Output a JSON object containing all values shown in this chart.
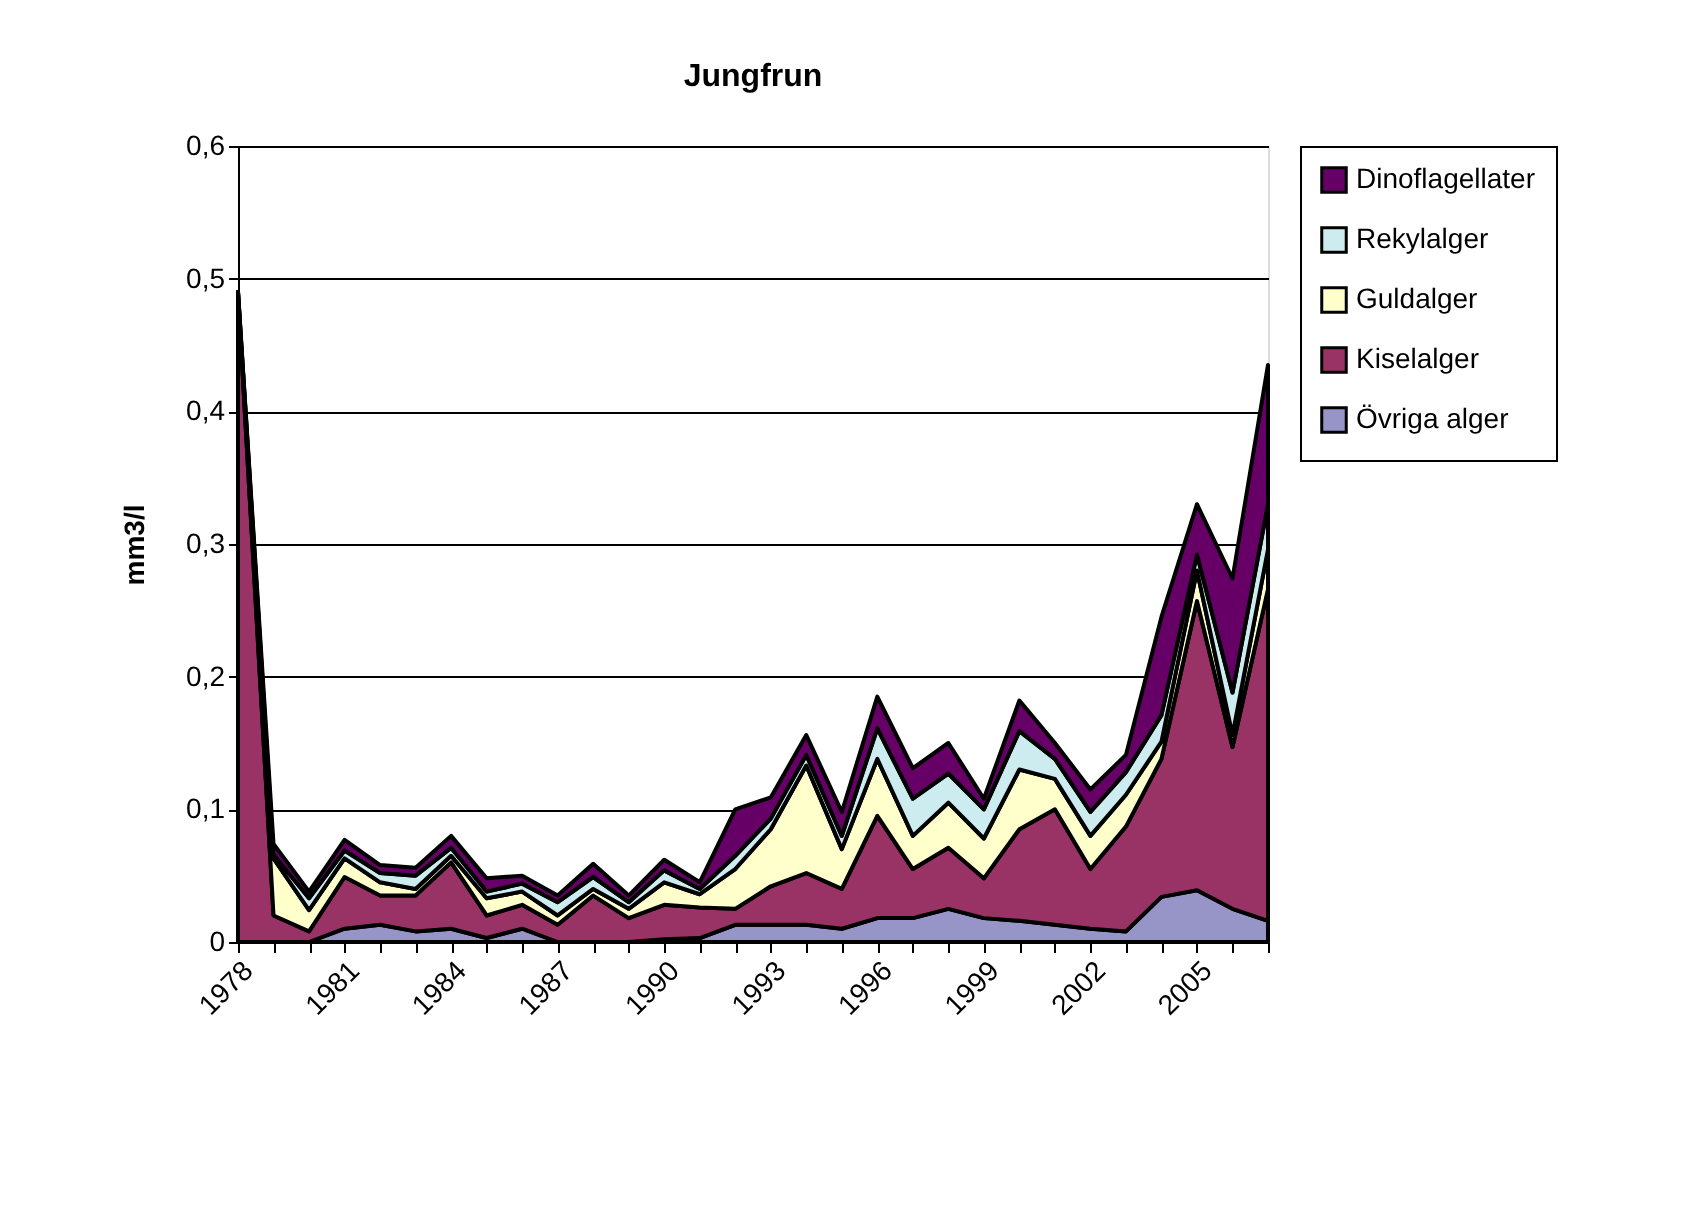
{
  "chart_data": {
    "type": "area",
    "title": "Jungfrun",
    "ylabel": "mm3/l",
    "stacked": true,
    "categories": [
      "1978",
      null,
      null,
      "1981",
      null,
      null,
      "1984",
      null,
      null,
      "1987",
      null,
      null,
      "1990",
      null,
      null,
      "1993",
      null,
      null,
      "1996",
      null,
      null,
      "1999",
      null,
      null,
      "2002",
      null,
      null,
      "2005",
      null,
      null
    ],
    "series": [
      {
        "name": "Övriga alger",
        "color": "#9795c8",
        "values": [
          0,
          0,
          0,
          0.01,
          0.013,
          0.008,
          0.01,
          0.003,
          0.01,
          0,
          0,
          0,
          0.002,
          0.003,
          0.013,
          0.013,
          0.013,
          0.01,
          0.018,
          0.018,
          0.025,
          0.018,
          0.016,
          0.013,
          0.01,
          0.008,
          0.034,
          0.039,
          0.025,
          0.016
        ]
      },
      {
        "name": "Kiselalger",
        "color": "#993366",
        "values": [
          0.49,
          0.02,
          0.008,
          0.039,
          0.022,
          0.027,
          0.05,
          0.017,
          0.018,
          0.013,
          0.035,
          0.018,
          0.026,
          0.023,
          0.012,
          0.029,
          0.039,
          0.03,
          0.077,
          0.037,
          0.046,
          0.03,
          0.069,
          0.087,
          0.045,
          0.079,
          0.104,
          0.218,
          0.122,
          0.25
        ]
      },
      {
        "name": "Guldalger",
        "color": "#ffffcc",
        "values": [
          0,
          0.043,
          0.016,
          0.014,
          0.01,
          0.005,
          0.005,
          0.013,
          0.01,
          0.007,
          0.005,
          0.007,
          0.017,
          0.01,
          0.03,
          0.043,
          0.081,
          0.03,
          0.043,
          0.025,
          0.034,
          0.03,
          0.045,
          0.023,
          0.025,
          0.024,
          0.013,
          0.023,
          0.009,
          0.03
        ]
      },
      {
        "name": "Rekylalger",
        "color": "#ccecf0",
        "values": [
          0,
          0.003,
          0.009,
          0.006,
          0.007,
          0.01,
          0.006,
          0.005,
          0.006,
          0.01,
          0.009,
          0.005,
          0.009,
          0.004,
          0.01,
          0.008,
          0.008,
          0.01,
          0.023,
          0.028,
          0.022,
          0.022,
          0.029,
          0.015,
          0.018,
          0.017,
          0.02,
          0.012,
          0.032,
          0.034
        ]
      },
      {
        "name": "Dinoflagellater",
        "color": "#660066",
        "values": [
          0,
          0.008,
          0.005,
          0.008,
          0.006,
          0.006,
          0.009,
          0.01,
          0.006,
          0.005,
          0.01,
          0.005,
          0.008,
          0.005,
          0.035,
          0.016,
          0.015,
          0.018,
          0.024,
          0.023,
          0.023,
          0.008,
          0.023,
          0.012,
          0.017,
          0.013,
          0.074,
          0.038,
          0.086,
          0.105
        ]
      }
    ],
    "ylim": [
      0,
      0.6
    ],
    "yticks": [
      0,
      {
        "value": 0.1,
        "label": "0,1"
      },
      {
        "value": 0.2,
        "label": "0,2"
      },
      {
        "value": 0.3,
        "label": "0,3"
      },
      {
        "value": 0.4,
        "label": "0,4"
      },
      {
        "value": 0.5,
        "label": "0,5"
      },
      {
        "value": 0.6,
        "label": "0,6"
      }
    ],
    "grid": "y",
    "legend": "right"
  }
}
